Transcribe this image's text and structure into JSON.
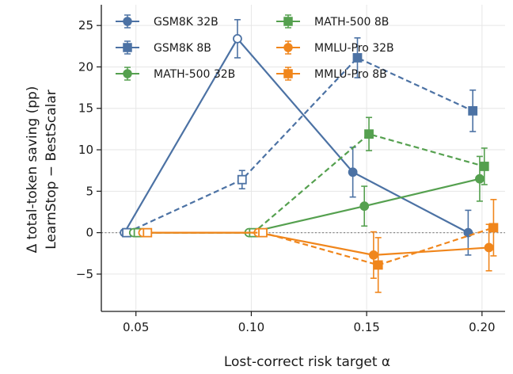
{
  "chart_data": {
    "type": "line",
    "xlabel": "Lost-correct risk target α",
    "ylabel_line1": "Δ total-token saving (pp)",
    "ylabel_line2": "LearnStop − BestScalar",
    "xlim": [
      0.035,
      0.21
    ],
    "ylim": [
      -9.5,
      27.5
    ],
    "x_ticks": [
      0.05,
      0.1,
      0.15,
      0.2
    ],
    "x_tick_labels": [
      "0.05",
      "0.10",
      "0.15",
      "0.20"
    ],
    "y_ticks": [
      -5,
      0,
      5,
      10,
      15,
      20,
      25
    ],
    "y_tick_labels": [
      "−5",
      "0",
      "5",
      "10",
      "15",
      "20",
      "25"
    ],
    "grid": true,
    "zero_line": true,
    "legend_placement": "upper-left, two columns",
    "series": [
      {
        "name": "GSM8K 32B",
        "color": "#4c72a4",
        "linestyle": "solid",
        "marker": "circle",
        "x": [
          0.045,
          0.094,
          0.144,
          0.194
        ],
        "y": [
          0.0,
          23.4,
          7.3,
          0.0
        ],
        "err": [
          0,
          2.3,
          3.0,
          2.7
        ],
        "hollow": [
          true,
          true,
          false,
          false
        ]
      },
      {
        "name": "GSM8K 8B",
        "color": "#4c72a4",
        "linestyle": "dashed",
        "marker": "square",
        "x": [
          0.046,
          0.096,
          0.146,
          0.196
        ],
        "y": [
          0.0,
          6.4,
          21.1,
          14.7
        ],
        "err": [
          0,
          1.1,
          2.4,
          2.5
        ],
        "hollow": [
          true,
          true,
          false,
          false
        ]
      },
      {
        "name": "MATH-500 32B",
        "color": "#55a04f",
        "linestyle": "solid",
        "marker": "circle",
        "x": [
          0.049,
          0.099,
          0.149,
          0.199
        ],
        "y": [
          0.0,
          0.0,
          3.2,
          6.5
        ],
        "err": [
          0,
          0,
          2.4,
          2.7
        ],
        "hollow": [
          true,
          true,
          false,
          false
        ]
      },
      {
        "name": "MATH-500 8B",
        "color": "#55a04f",
        "linestyle": "dashed",
        "marker": "square",
        "x": [
          0.051,
          0.101,
          0.151,
          0.201
        ],
        "y": [
          0.0,
          0.0,
          11.9,
          8.0
        ],
        "err": [
          0,
          0,
          2.0,
          2.2
        ],
        "hollow": [
          true,
          true,
          false,
          false
        ]
      },
      {
        "name": "MMLU-Pro 32B",
        "color": "#f0861c",
        "linestyle": "solid",
        "marker": "circle",
        "x": [
          0.053,
          0.103,
          0.153,
          0.203
        ],
        "y": [
          0.0,
          0.0,
          -2.7,
          -1.8
        ],
        "err": [
          0,
          0,
          2.8,
          2.8
        ],
        "hollow": [
          true,
          true,
          false,
          false
        ]
      },
      {
        "name": "MMLU-Pro 8B",
        "color": "#f0861c",
        "linestyle": "dashed",
        "marker": "square",
        "x": [
          0.055,
          0.105,
          0.155,
          0.205
        ],
        "y": [
          0.0,
          0.0,
          -3.9,
          0.6
        ],
        "err": [
          0,
          0,
          3.3,
          3.4
        ],
        "hollow": [
          true,
          true,
          false,
          false
        ]
      }
    ]
  }
}
